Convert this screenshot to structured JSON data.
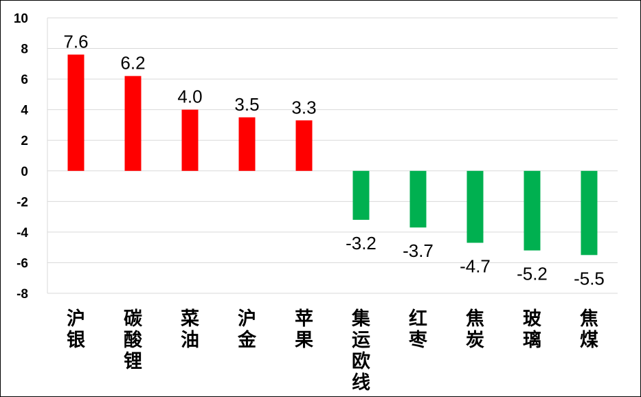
{
  "chart_data": {
    "type": "bar",
    "categories": [
      "沪银",
      "碳酸锂",
      "菜油",
      "沪金",
      "苹果",
      "集运欧线",
      "红枣",
      "焦炭",
      "玻璃",
      "焦煤"
    ],
    "values": [
      7.6,
      6.2,
      4.0,
      3.5,
      3.3,
      -3.2,
      -3.7,
      -4.7,
      -5.2,
      -5.5
    ],
    "value_labels": [
      "7.6",
      "6.2",
      "4.0",
      "3.5",
      "3.3",
      "-3.2",
      "-3.7",
      "-4.7",
      "-5.2",
      "-5.5"
    ],
    "y_ticks": [
      "10",
      "8",
      "6",
      "4",
      "2",
      "0",
      "-2",
      "-4",
      "-6",
      "-8"
    ],
    "ylim": [
      -8,
      10
    ],
    "grid": true,
    "positive_color": "#ff0000",
    "negative_color": "#00b050",
    "title": "",
    "xlabel": "",
    "ylabel": ""
  }
}
